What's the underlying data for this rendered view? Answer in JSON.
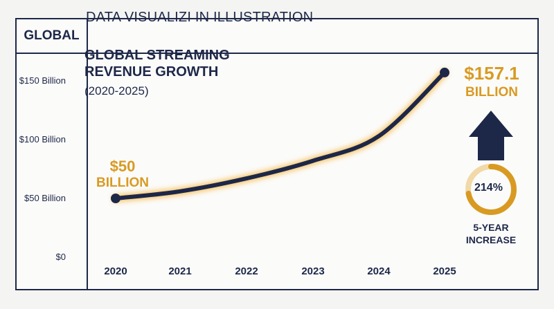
{
  "header": {
    "tag": "GLOBAL",
    "title": "DATA VISUALIZI IN ILLUSTRATION"
  },
  "chart_data": {
    "type": "line",
    "title_line1": "GLOBAL STREAMING",
    "title_line2": "REVENUE GROWTH",
    "subtitle": "(2020-2025)",
    "x": [
      "2020",
      "2021",
      "2022",
      "2023",
      "2024",
      "2025"
    ],
    "y_ticks": [
      "$0",
      "$50 Billion",
      "$100 Billion",
      "$150 Billion"
    ],
    "ylim": [
      0,
      150
    ],
    "series": [
      {
        "values": [
          50,
          56,
          67,
          82,
          103,
          157.1
        ]
      }
    ],
    "start_label": {
      "value": "$50",
      "unit": "BILLION"
    },
    "end_label": {
      "value": "$157.1",
      "unit": "BILLION"
    },
    "colors": {
      "line": "#1d2748",
      "glow": "#f5b53a",
      "accent": "#d99a22",
      "navy": "#1d2748",
      "ring_bg": "#f1d9a8"
    }
  },
  "increase": {
    "percent_text": "214%",
    "percent_value": 214,
    "label_line1": "5-YEAR",
    "label_line2": "INCREASE",
    "arrow_icon": "up-arrow-icon"
  }
}
